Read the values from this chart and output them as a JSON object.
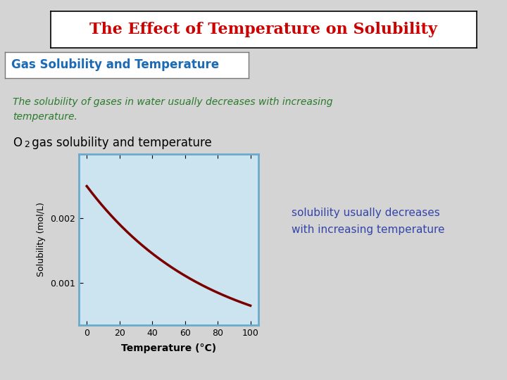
{
  "title": "The Effect of Temperature on Solubility",
  "title_color": "#cc0000",
  "subtitle": "Gas Solubility and Temperature",
  "subtitle_color": "#1a6ab5",
  "italic_text_line1": "The solubility of gases in water usually decreases with increasing",
  "italic_text_line2": "temperature.",
  "italic_text_color": "#2a7a2a",
  "annotation_line1": "solubility usually decreases",
  "annotation_line2": "with increasing temperature",
  "annotation_color": "#3344aa",
  "page_bg": "#d4d4d4",
  "plot_outer_bg": "#e8e8e8",
  "plot_inner_bg": "#cce4f0",
  "plot_border_color": "#6aabcc",
  "curve_color": "#7a0000",
  "ylabel": "Solubility (mol/L)",
  "xlabel": "Temperature (°C)",
  "x_data": [
    0,
    10,
    20,
    30,
    40,
    50,
    60,
    70,
    80,
    90,
    100
  ],
  "y_data": [
    0.00274,
    0.00228,
    0.0019,
    0.00161,
    0.00138,
    0.00119,
    0.00105,
    0.00093,
    0.00084,
    0.00077,
    0.00072
  ],
  "xlim": [
    -5,
    105
  ],
  "ylim": [
    0.00035,
    0.003
  ],
  "yticks": [
    0.001,
    0.002
  ],
  "xticks": [
    0,
    20,
    40,
    60,
    80,
    100
  ],
  "title_fontsize": 16,
  "subtitle_fontsize": 12,
  "italic_fontsize": 10,
  "o2_fontsize": 12,
  "annotation_fontsize": 11
}
